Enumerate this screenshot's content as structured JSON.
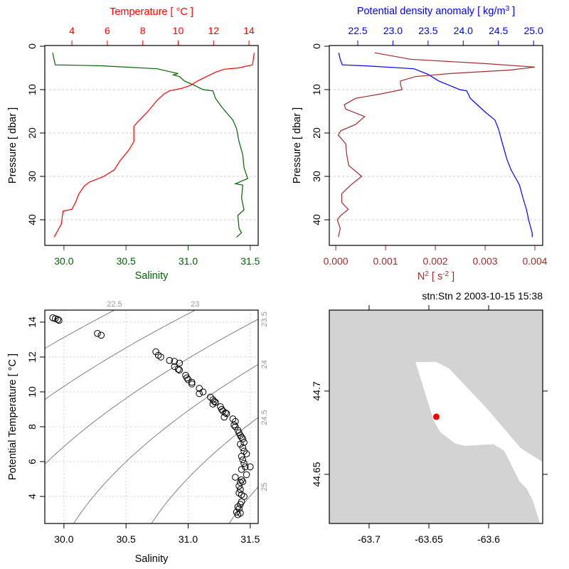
{
  "chart_data": [
    {
      "type": "line",
      "panel": "salinity-temperature-profile",
      "ylabel": "Pressure [ dbar ]",
      "ylim": [
        0,
        46
      ],
      "yticks": [
        0,
        10,
        20,
        30,
        40
      ],
      "y_reversed": true,
      "grid": "horizontal dashed",
      "bottom_axis": {
        "label": "Salinity",
        "color": "#006400",
        "lim": [
          29.846,
          31.564
        ],
        "ticks": [
          30.0,
          30.5,
          31.0,
          31.5
        ],
        "tick_labels": [
          "30.0",
          "30.5",
          "31.0",
          "31.5"
        ]
      },
      "top_axis": {
        "label": "Temperature [ °C ]",
        "color": "#ff0000",
        "lim": [
          2.47,
          14.52
        ],
        "ticks": [
          4,
          6,
          8,
          10,
          12,
          14
        ],
        "tick_labels": [
          "4",
          "6",
          "8",
          "10",
          "12",
          "14"
        ]
      },
      "series": [
        {
          "axis": "bottom",
          "color": "#006400",
          "pressure": [
            1.5,
            3,
            4.3,
            4.5,
            5.2,
            6.3,
            6.6,
            7,
            8,
            9,
            10,
            10.3,
            12,
            14,
            16,
            17,
            19,
            22,
            25,
            28,
            30.5,
            31.7,
            32,
            35,
            37.7,
            39,
            42,
            43,
            44
          ],
          "values": [
            29.91,
            29.92,
            29.93,
            30.3,
            30.75,
            30.92,
            30.88,
            30.93,
            30.97,
            31.05,
            31.12,
            31.2,
            31.22,
            31.27,
            31.33,
            31.36,
            31.39,
            31.41,
            31.44,
            31.45,
            31.48,
            31.38,
            31.44,
            31.43,
            31.45,
            31.4,
            31.41,
            31.43,
            31.39
          ]
        },
        {
          "axis": "top",
          "color": "#ff0000",
          "pressure": [
            1.5,
            4.3,
            5,
            5.3,
            6,
            7,
            8,
            9,
            9.7,
            10.3,
            11,
            12.5,
            15,
            17.5,
            18.5,
            22,
            24,
            26.5,
            28.5,
            30,
            31.3,
            32.2,
            34,
            36,
            37.6,
            38,
            41,
            44
          ],
          "values": [
            14.3,
            14.2,
            13.4,
            12.6,
            12.1,
            11.6,
            11.1,
            10.7,
            10.2,
            9.5,
            9.2,
            8.8,
            8.3,
            7.7,
            7.5,
            7.5,
            7.2,
            6.7,
            6.4,
            5.8,
            5.0,
            4.7,
            4.4,
            4.2,
            4.0,
            3.5,
            3.4,
            3.0
          ]
        }
      ]
    },
    {
      "type": "line",
      "panel": "density-n2-profile",
      "ylabel": "Pressure [ dbar ]",
      "ylim": [
        0,
        46
      ],
      "yticks": [
        0,
        10,
        20,
        30,
        40
      ],
      "y_reversed": true,
      "grid": "horizontal dashed",
      "bottom_axis": {
        "label_base": "N",
        "label_sup": "2",
        "label_unit": " [ s",
        "label_unit_sup": "-2",
        "label_end": " ]",
        "color": "#a52a2a",
        "lim": [
          -0.00013,
          0.004157
        ],
        "ticks": [
          0,
          0.001,
          0.002,
          0.003,
          0.004
        ],
        "tick_labels": [
          "0.000",
          "0.001",
          "0.002",
          "0.003",
          "0.004"
        ]
      },
      "top_axis": {
        "label_base": "Potential density anomaly [ kg/m",
        "label_sup": "3",
        "label_end": " ]",
        "color": "#0000ff",
        "lim": [
          22.095,
          25.13
        ],
        "ticks": [
          22.5,
          23.0,
          23.5,
          24.0,
          24.5,
          25.0
        ],
        "tick_labels": [
          "22.5",
          "23.0",
          "23.5",
          "24.0",
          "24.5",
          "25.0"
        ]
      },
      "series": [
        {
          "axis": "top",
          "color": "#0000ff",
          "pressure": [
            1.5,
            3,
            4.3,
            4.5,
            5.2,
            6.5,
            8,
            10,
            10.3,
            12,
            15,
            17,
            19,
            22,
            26,
            28.5,
            30.5,
            32,
            35,
            37.7,
            40,
            43,
            44
          ],
          "values": [
            22.23,
            22.25,
            22.28,
            22.6,
            23.3,
            23.5,
            23.65,
            23.95,
            24.05,
            24.1,
            24.3,
            24.45,
            24.5,
            24.55,
            24.62,
            24.68,
            24.75,
            24.8,
            24.85,
            24.9,
            24.93,
            24.98,
            24.98
          ]
        },
        {
          "axis": "bottom",
          "color": "#a52a2a",
          "pressure": [
            1.5,
            3,
            4,
            4.8,
            5.5,
            6.3,
            7,
            8,
            8.8,
            10,
            11,
            12,
            13.5,
            14.5,
            16.2,
            18,
            19.5,
            20.5,
            22.5,
            25,
            27.5,
            30,
            32,
            34,
            36,
            37.6,
            39,
            40,
            42,
            44
          ],
          "values": [
            0.00078,
            0.0015,
            0.003,
            0.004,
            0.0035,
            0.0023,
            0.0016,
            0.0013,
            0.0013,
            0.00133,
            0.0009,
            0.0004,
            0.00017,
            0.0002,
            0.00058,
            0.0004,
            0.0001,
            5e-05,
            0.0002,
            0.00022,
            0.00026,
            0.00052,
            0.0003,
            0.00012,
            0.00012,
            0.00025,
            0.0001,
            3e-05,
            9e-05,
            5e-05
          ]
        }
      ]
    },
    {
      "type": "scatter",
      "panel": "ts-diagram",
      "xlabel": "Salinity",
      "ylabel": "Potential Temperature [ °C ]",
      "xlim": [
        29.846,
        31.564
      ],
      "ylim": [
        2.45,
        14.69
      ],
      "xticks": [
        30.0,
        30.5,
        31.0,
        31.5
      ],
      "xtick_labels": [
        "30.0",
        "30.5",
        "31.0",
        "31.5"
      ],
      "yticks": [
        4,
        6,
        8,
        10,
        12,
        14
      ],
      "ytick_labels": [
        "4",
        "6",
        "8",
        "10",
        "12",
        "14"
      ],
      "grid": "dotted",
      "isopycnals": [
        22.5,
        23,
        23.5,
        24,
        24.5,
        25
      ],
      "isopycnal_labels": [
        "22.5",
        "23",
        "23.5",
        "24",
        "24.5",
        "25"
      ],
      "isopycnal_color": "#808080",
      "points": [
        [
          29.91,
          14.25
        ],
        [
          29.93,
          14.2
        ],
        [
          29.95,
          14.15
        ],
        [
          29.96,
          14.1
        ],
        [
          30.27,
          13.35
        ],
        [
          30.3,
          13.25
        ],
        [
          30.74,
          12.3
        ],
        [
          30.76,
          12.1
        ],
        [
          30.78,
          12.0
        ],
        [
          30.85,
          11.8
        ],
        [
          30.89,
          11.75
        ],
        [
          30.93,
          11.65
        ],
        [
          30.89,
          11.45
        ],
        [
          30.92,
          11.3
        ],
        [
          30.93,
          11.25
        ],
        [
          30.98,
          10.95
        ],
        [
          30.99,
          10.8
        ],
        [
          31.0,
          10.7
        ],
        [
          31.03,
          10.55
        ],
        [
          31.03,
          10.45
        ],
        [
          31.09,
          10.2
        ],
        [
          31.12,
          10.0
        ],
        [
          31.09,
          9.9
        ],
        [
          31.18,
          9.7
        ],
        [
          31.2,
          9.55
        ],
        [
          31.21,
          9.45
        ],
        [
          31.22,
          9.4
        ],
        [
          31.2,
          9.3
        ],
        [
          31.26,
          9.15
        ],
        [
          31.27,
          9.0
        ],
        [
          31.28,
          8.9
        ],
        [
          31.3,
          8.8
        ],
        [
          31.29,
          8.55
        ],
        [
          31.31,
          8.75
        ],
        [
          31.36,
          8.45
        ],
        [
          31.38,
          8.3
        ],
        [
          31.37,
          8.1
        ],
        [
          31.38,
          8.0
        ],
        [
          31.4,
          7.8
        ],
        [
          31.41,
          7.65
        ],
        [
          31.42,
          7.5
        ],
        [
          31.43,
          7.4
        ],
        [
          31.44,
          7.3
        ],
        [
          31.45,
          7.1
        ],
        [
          31.42,
          7.0
        ],
        [
          31.44,
          6.8
        ],
        [
          31.45,
          6.6
        ],
        [
          31.47,
          6.45
        ],
        [
          31.43,
          6.3
        ],
        [
          31.44,
          6.1
        ],
        [
          31.45,
          5.9
        ],
        [
          31.46,
          5.7
        ],
        [
          31.5,
          5.7
        ],
        [
          31.43,
          5.55
        ],
        [
          31.47,
          5.25
        ],
        [
          31.38,
          5.1
        ],
        [
          31.43,
          4.95
        ],
        [
          31.42,
          4.8
        ],
        [
          31.44,
          4.85
        ],
        [
          31.41,
          4.6
        ],
        [
          31.42,
          4.4
        ],
        [
          31.41,
          4.2
        ],
        [
          31.43,
          4.1
        ],
        [
          31.45,
          4.0
        ],
        [
          31.43,
          3.7
        ],
        [
          31.42,
          3.55
        ],
        [
          31.4,
          3.4
        ],
        [
          31.41,
          3.3
        ],
        [
          31.39,
          3.1
        ],
        [
          31.42,
          3.05
        ],
        [
          31.4,
          2.95
        ]
      ]
    },
    {
      "type": "map",
      "panel": "station-map",
      "title": "stn:Stn 2  2003-10-15 15:38",
      "xlim": [
        -63.7333,
        -63.5548
      ],
      "ylim": [
        44.6205,
        44.7486
      ],
      "xticks": [
        -63.7,
        -63.65,
        -63.6
      ],
      "xtick_labels": [
        "-63.7",
        "-63.65",
        "-63.6"
      ],
      "yticks": [
        44.7,
        44.65
      ],
      "ytick_labels": [
        "44.7",
        "44.65"
      ],
      "land_color": "#d3d3d3",
      "water_color": "#ffffff",
      "water_polygon": [
        [
          -63.6612,
          44.7174
        ],
        [
          -63.6438,
          44.7175
        ],
        [
          -63.6329,
          44.7134
        ],
        [
          -63.602,
          44.6899
        ],
        [
          -63.5731,
          44.6657
        ],
        [
          -63.5542,
          44.6571
        ],
        [
          -63.5542,
          44.6208
        ],
        [
          -63.5572,
          44.6208
        ],
        [
          -63.5631,
          44.6343
        ],
        [
          -63.5681,
          44.6414
        ],
        [
          -63.5741,
          44.6457
        ],
        [
          -63.587,
          44.6642
        ],
        [
          -63.596,
          44.6681
        ],
        [
          -63.6199,
          44.6671
        ],
        [
          -63.6279,
          44.6685
        ],
        [
          -63.6408,
          44.6756
        ],
        [
          -63.6458,
          44.682
        ],
        [
          -63.6518,
          44.6956
        ]
      ],
      "station": {
        "lon": -63.6438,
        "lat": 44.6846,
        "color": "#ff0000"
      }
    }
  ]
}
